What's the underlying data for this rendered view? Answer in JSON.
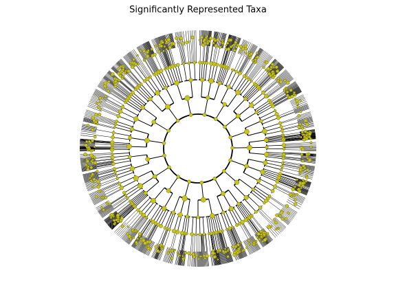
{
  "title": "Significantly Represented Taxa",
  "colors": {
    "branch": "#000000",
    "node_fill": "#c9c41a",
    "node_stroke": "#6e6a10",
    "background": "#ffffff"
  },
  "tree": {
    "layout": "circular-cladogram",
    "levels": 6,
    "clades": [
      {
        "start": 0,
        "end": 22,
        "children": [
          4,
          3,
          5
        ]
      },
      {
        "start": 22,
        "end": 40,
        "children": [
          3,
          4
        ]
      },
      {
        "start": 40,
        "end": 62,
        "children": [
          5,
          2,
          4
        ]
      },
      {
        "start": 62,
        "end": 80,
        "children": [
          3,
          3
        ]
      },
      {
        "start": 80,
        "end": 98,
        "children": [
          6,
          2,
          4
        ]
      },
      {
        "start": 98,
        "end": 122,
        "children": [
          3,
          5,
          2
        ]
      },
      {
        "start": 122,
        "end": 140,
        "children": [
          4,
          2
        ]
      },
      {
        "start": 140,
        "end": 162,
        "children": [
          5,
          3,
          3
        ]
      },
      {
        "start": 162,
        "end": 186,
        "children": [
          7,
          4
        ]
      },
      {
        "start": 186,
        "end": 204,
        "children": [
          3,
          2,
          3
        ]
      },
      {
        "start": 204,
        "end": 226,
        "children": [
          5,
          4
        ]
      },
      {
        "start": 226,
        "end": 248,
        "children": [
          6,
          3,
          2
        ]
      },
      {
        "start": 248,
        "end": 268,
        "children": [
          4,
          4
        ]
      },
      {
        "start": 268,
        "end": 290,
        "children": [
          5,
          2,
          3
        ]
      },
      {
        "start": 290,
        "end": 312,
        "children": [
          3,
          6
        ]
      },
      {
        "start": 312,
        "end": 336,
        "children": [
          4,
          3,
          4
        ]
      },
      {
        "start": 336,
        "end": 360,
        "children": [
          6,
          3
        ]
      }
    ]
  }
}
